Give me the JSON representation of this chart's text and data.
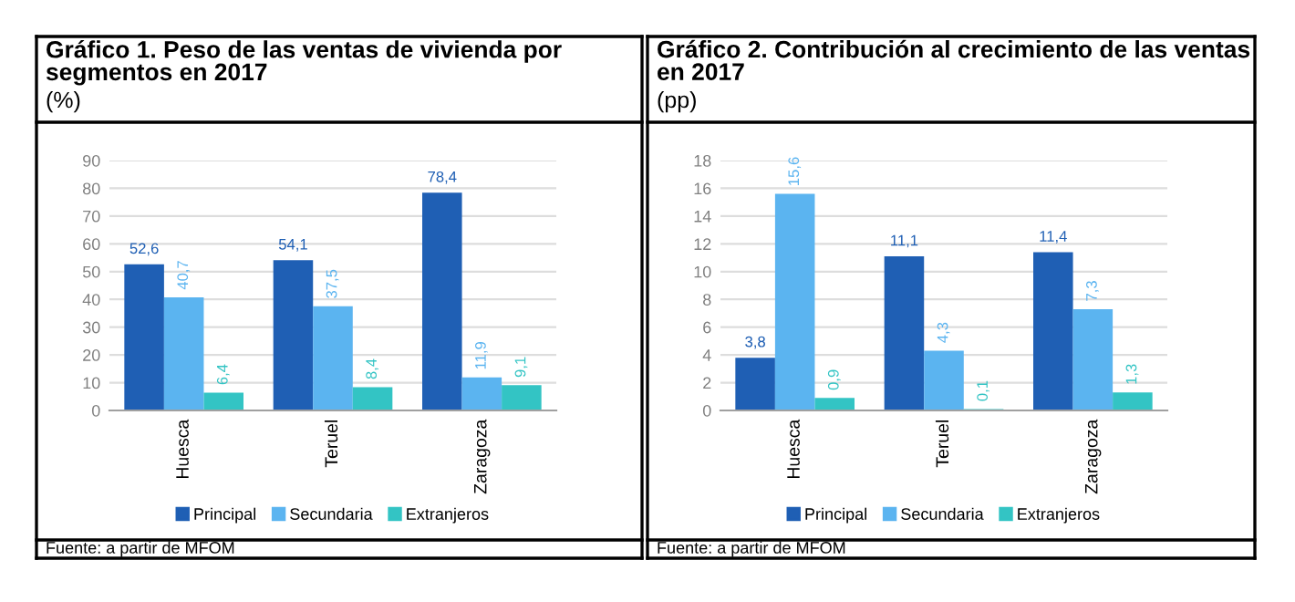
{
  "chart_data": [
    {
      "type": "bar",
      "title": "Gráfico 1. Peso de las ventas de vivienda por segmentos en 2017",
      "subtitle": "(%)",
      "categories": [
        "Huesca",
        "Teruel",
        "Zaragoza"
      ],
      "series": [
        {
          "name": "Principal",
          "color": "#1f5fb4",
          "values": [
            52.6,
            54.1,
            78.4
          ],
          "value_labels": [
            "52,6",
            "54,1",
            "78,4"
          ]
        },
        {
          "name": "Secundaria",
          "color": "#5bb4f0",
          "values": [
            40.7,
            37.5,
            11.9
          ],
          "value_labels": [
            "40,7",
            "37,5",
            "11,9"
          ]
        },
        {
          "name": "Extranjeros",
          "color": "#33c4c4",
          "values": [
            6.4,
            8.4,
            9.1
          ],
          "value_labels": [
            "6,4",
            "8,4",
            "9,1"
          ]
        }
      ],
      "ylim": [
        0,
        90
      ],
      "yticks": [
        0,
        10,
        20,
        30,
        40,
        50,
        60,
        70,
        80,
        90
      ],
      "grid": "y",
      "legend": "bottom",
      "annotations": [
        "Fuente: a partir de MFOM"
      ]
    },
    {
      "type": "bar",
      "title": "Gráfico 2. Contribución al crecimiento de las ventas en 2017",
      "subtitle": "(pp)",
      "categories": [
        "Huesca",
        "Teruel",
        "Zaragoza"
      ],
      "series": [
        {
          "name": "Principal",
          "color": "#1f5fb4",
          "values": [
            3.8,
            11.1,
            11.4
          ],
          "value_labels": [
            "3,8",
            "11,1",
            "11,4"
          ]
        },
        {
          "name": "Secundaria",
          "color": "#5bb4f0",
          "values": [
            15.6,
            4.3,
            7.3
          ],
          "value_labels": [
            "15,6",
            "4,3",
            "7,3"
          ]
        },
        {
          "name": "Extranjeros",
          "color": "#33c4c4",
          "values": [
            0.9,
            0.1,
            1.3
          ],
          "value_labels": [
            "0,9",
            "0,1",
            "1,3"
          ]
        }
      ],
      "ylim": [
        0,
        18
      ],
      "yticks": [
        0,
        2,
        4,
        6,
        8,
        10,
        12,
        14,
        16,
        18
      ],
      "grid": "y",
      "legend": "bottom",
      "annotations": [
        "Fuente: a partir de MFOM"
      ]
    }
  ]
}
